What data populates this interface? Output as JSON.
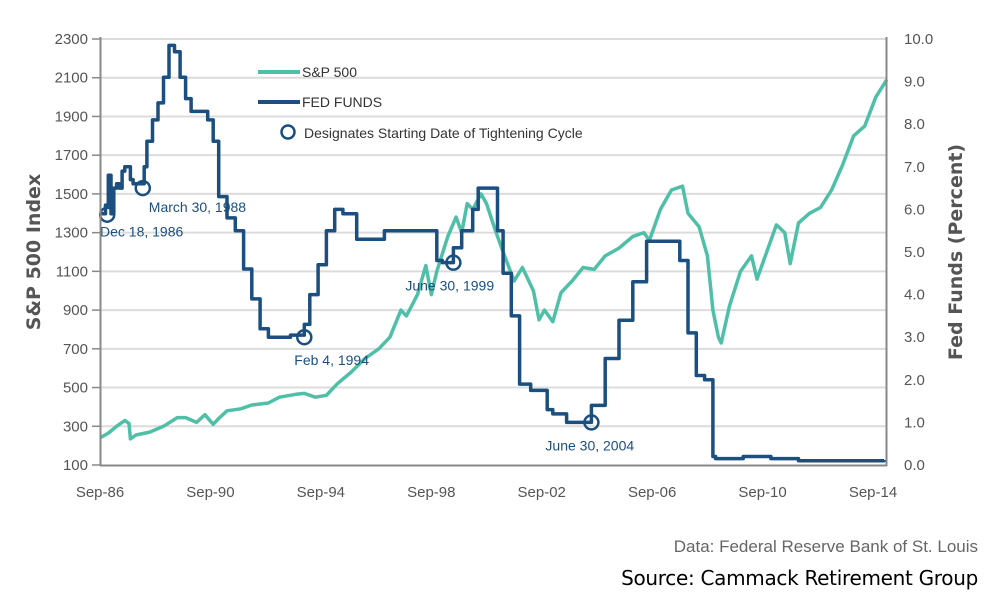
{
  "chart_data": {
    "type": "line",
    "title": "",
    "xlabel": "",
    "ylabel": "S&P 500 Index",
    "ylabel_right": "Fed Funds (Percent)",
    "ylim": [
      100,
      2300
    ],
    "ylim_right": [
      0,
      10
    ],
    "yticks": [
      "2300",
      "2100",
      "1900",
      "1700",
      "1500",
      "1300",
      "1100",
      "900",
      "700",
      "500",
      "300",
      "100"
    ],
    "yticks_right": [
      "10.0",
      "9.0",
      "8.0",
      "7.0",
      "6.0",
      "5.0",
      "4.0",
      "3.0",
      "2.0",
      "1.0",
      "0.0"
    ],
    "xticks": [
      "Sep-86",
      "Sep-90",
      "Sep-94",
      "Sep-98",
      "Sep-02",
      "Sep-06",
      "Sep-10",
      "Sep-14"
    ],
    "xlim_years": [
      1986.7,
      2015.2
    ],
    "grid": true,
    "legend_position": "top-center",
    "legend": [
      {
        "label": "S&P 500",
        "kind": "line",
        "color": "#4fbfa8"
      },
      {
        "label": "FED FUNDS",
        "kind": "line",
        "color": "#1b4f80"
      },
      {
        "label": "Designates Starting Date of Tightening Cycle",
        "kind": "circle",
        "color": "#1b4f80"
      }
    ],
    "series": [
      {
        "name": "S&P 500",
        "axis": "left",
        "color": "#4fbfa8",
        "x": [
          1986.7,
          1987.0,
          1987.3,
          1987.6,
          1987.75,
          1987.8,
          1988.0,
          1988.5,
          1989.0,
          1989.5,
          1989.8,
          1990.2,
          1990.5,
          1990.8,
          1991.0,
          1991.3,
          1991.8,
          1992.2,
          1992.8,
          1993.2,
          1993.8,
          1994.1,
          1994.5,
          1994.9,
          1995.3,
          1995.8,
          1996.3,
          1996.8,
          1997.2,
          1997.6,
          1997.8,
          1998.2,
          1998.5,
          1998.7,
          1998.9,
          1999.3,
          1999.6,
          1999.8,
          2000.0,
          2000.2,
          2000.5,
          2000.7,
          2001.0,
          2001.3,
          2001.7,
          2002.0,
          2002.4,
          2002.6,
          2002.8,
          2003.1,
          2003.4,
          2003.8,
          2004.2,
          2004.6,
          2005.0,
          2005.5,
          2006.0,
          2006.4,
          2006.6,
          2007.0,
          2007.4,
          2007.8,
          2008.0,
          2008.4,
          2008.7,
          2008.9,
          2009.1,
          2009.2,
          2009.5,
          2009.9,
          2010.3,
          2010.5,
          2010.8,
          2011.2,
          2011.5,
          2011.7,
          2012.0,
          2012.4,
          2012.8,
          2013.2,
          2013.6,
          2014.0,
          2014.4,
          2014.8,
          2015.2
        ],
        "values": [
          240,
          265,
          300,
          330,
          315,
          235,
          255,
          270,
          300,
          345,
          345,
          320,
          360,
          310,
          340,
          380,
          390,
          410,
          420,
          450,
          465,
          470,
          450,
          460,
          520,
          580,
          650,
          700,
          760,
          900,
          870,
          980,
          1130,
          980,
          1100,
          1280,
          1380,
          1300,
          1450,
          1420,
          1500,
          1450,
          1320,
          1200,
          1050,
          1120,
          1000,
          850,
          900,
          840,
          990,
          1050,
          1120,
          1110,
          1180,
          1220,
          1280,
          1300,
          1260,
          1420,
          1520,
          1540,
          1400,
          1330,
          1180,
          900,
          760,
          730,
          920,
          1100,
          1180,
          1060,
          1180,
          1340,
          1300,
          1140,
          1350,
          1400,
          1430,
          1520,
          1650,
          1800,
          1850,
          2000,
          2090
        ]
      },
      {
        "name": "FED FUNDS",
        "axis": "right",
        "color": "#1b4f80",
        "x": [
          1986.7,
          1986.9,
          1987.0,
          1987.1,
          1987.2,
          1987.3,
          1987.4,
          1987.5,
          1987.6,
          1987.8,
          1987.9,
          1988.1,
          1988.3,
          1988.4,
          1988.6,
          1988.8,
          1989.0,
          1989.2,
          1989.4,
          1989.6,
          1989.8,
          1990.0,
          1990.3,
          1990.6,
          1990.8,
          1991.0,
          1991.3,
          1991.6,
          1991.9,
          1992.2,
          1992.5,
          1992.8,
          1993.2,
          1993.6,
          1994.0,
          1994.1,
          1994.3,
          1994.6,
          1994.9,
          1995.2,
          1995.5,
          1996.0,
          1996.5,
          1997.0,
          1997.5,
          1998.0,
          1998.6,
          1998.9,
          1999.1,
          1999.5,
          1999.8,
          2000.2,
          2000.4,
          2000.9,
          2001.1,
          2001.3,
          2001.6,
          2001.9,
          2002.3,
          2002.9,
          2003.1,
          2003.6,
          2004.2,
          2004.5,
          2005.0,
          2005.5,
          2006.0,
          2006.5,
          2007.5,
          2007.7,
          2008.0,
          2008.3,
          2008.6,
          2008.9,
          2009.0,
          2010.0,
          2011.0,
          2012.0,
          2013.0,
          2014.0,
          2015.1
        ],
        "values": [
          5.9,
          6.1,
          6.8,
          5.9,
          6.5,
          6.6,
          6.5,
          6.9,
          7.0,
          6.7,
          6.6,
          6.6,
          7.0,
          7.6,
          8.1,
          8.5,
          9.1,
          9.85,
          9.7,
          9.1,
          8.6,
          8.3,
          8.3,
          8.1,
          7.6,
          6.3,
          5.8,
          5.5,
          4.6,
          3.9,
          3.2,
          3.0,
          3.0,
          3.05,
          3.05,
          3.3,
          4.0,
          4.7,
          5.5,
          6.0,
          5.9,
          5.3,
          5.3,
          5.5,
          5.5,
          5.5,
          5.5,
          4.8,
          4.75,
          5.1,
          5.5,
          6.0,
          6.5,
          6.5,
          5.5,
          4.5,
          3.5,
          1.9,
          1.75,
          1.3,
          1.2,
          1.0,
          1.0,
          1.4,
          2.5,
          3.4,
          4.3,
          5.25,
          5.25,
          4.8,
          3.1,
          2.1,
          2.0,
          0.2,
          0.15,
          0.2,
          0.15,
          0.1,
          0.1,
          0.1,
          0.12
        ]
      }
    ],
    "annotations": [
      {
        "label": "Dec 18, 1986",
        "x": 1986.96,
        "value": 5.875,
        "axis": "right"
      },
      {
        "label": "March 30, 1988",
        "x": 1988.25,
        "value": 6.5,
        "axis": "right"
      },
      {
        "label": "Feb 4, 1994",
        "x": 1994.1,
        "value": 3.0,
        "axis": "right"
      },
      {
        "label": "June 30, 1999",
        "x": 1999.5,
        "value": 4.75,
        "axis": "right"
      },
      {
        "label": "June 30, 2004",
        "x": 2004.5,
        "value": 1.0,
        "axis": "right"
      }
    ]
  },
  "footer": {
    "data_credit": "Data: Federal Reserve Bank of St. Louis",
    "source_credit": "Source: Cammack Retirement Group"
  }
}
